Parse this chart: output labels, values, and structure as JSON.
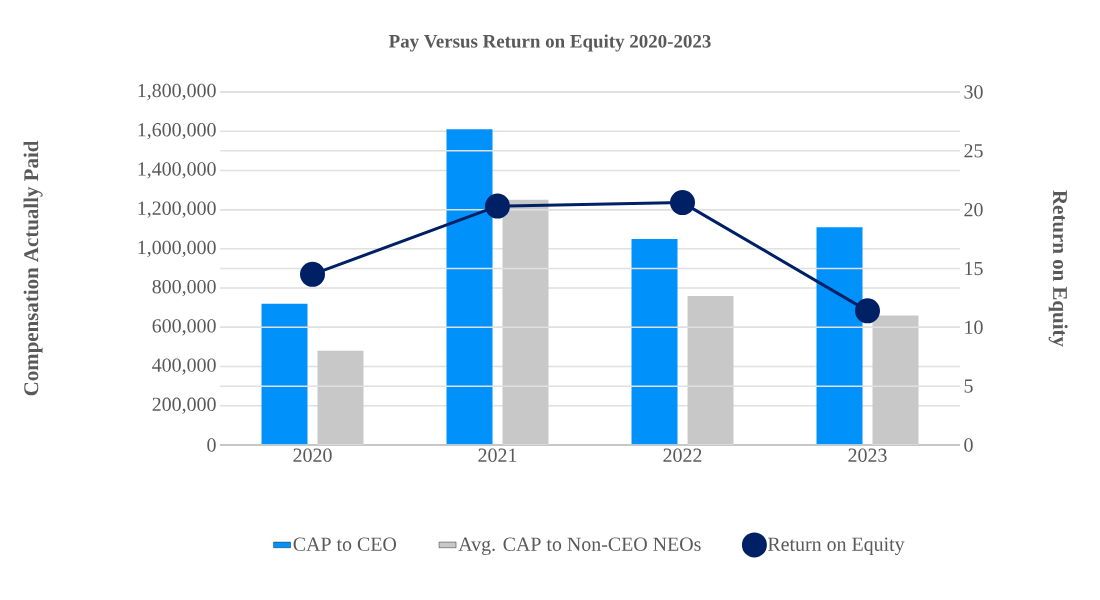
{
  "chart_data": {
    "type": "bar",
    "title": "Pay Versus Return on Equity 2020-2023",
    "ylabel": "Compensation Actually Paid",
    "y2label": "Return on Equity",
    "categories": [
      "2020",
      "2021",
      "2022",
      "2023"
    ],
    "series": [
      {
        "name": "CAP to CEO",
        "color": "#0091fa",
        "values": [
          720000,
          1610000,
          1050000,
          1110000
        ]
      },
      {
        "name": "Avg. CAP to Non-CEO NEOs",
        "color": "#c8c8c8",
        "values": [
          480000,
          1250000,
          760000,
          660000
        ]
      },
      {
        "name": "Return on Equity",
        "type": "line",
        "axis": "y2",
        "color": "#002066",
        "marker": "circle",
        "values": [
          14.5,
          20.3,
          20.6,
          11.4
        ]
      }
    ],
    "ylim": [
      0,
      1800000
    ],
    "yticks": [
      0,
      {
        "value": 200000,
        "label": "200,000"
      },
      {
        "value": 400000,
        "label": "400,000"
      },
      {
        "value": 600000,
        "label": "600,000"
      },
      {
        "value": 800000,
        "label": "800,000"
      },
      {
        "value": 1000000,
        "label": "1,000,000"
      },
      {
        "value": 1200000,
        "label": "1,200,000"
      },
      {
        "value": 1400000,
        "label": "1,400,000"
      },
      {
        "value": 1600000,
        "label": "1,600,000"
      },
      {
        "value": 1800000,
        "label": "1,800,000"
      }
    ],
    "y2lim": [
      0,
      30
    ],
    "y2ticks": [
      0,
      5,
      10,
      15,
      20,
      25,
      30
    ],
    "grid": true,
    "legend": "bottom"
  }
}
